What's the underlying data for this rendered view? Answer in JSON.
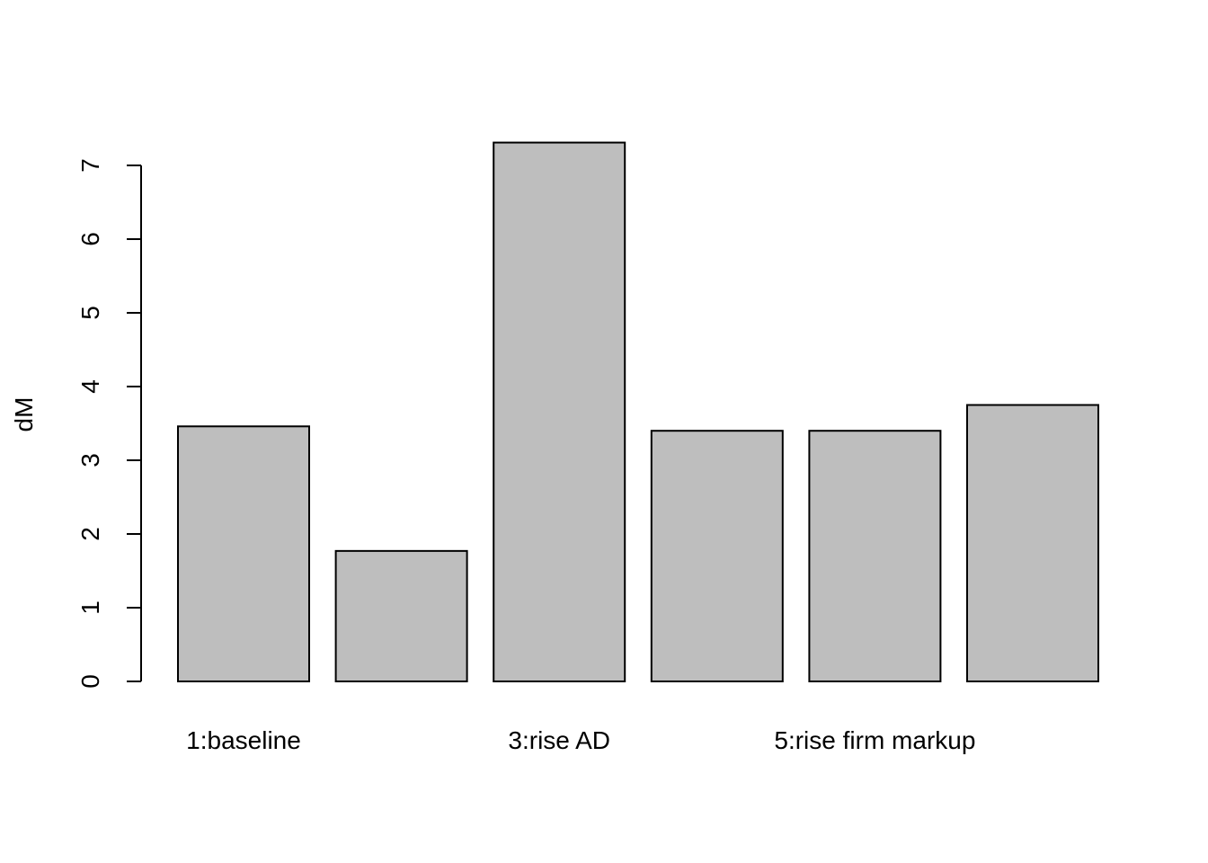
{
  "chart_data": {
    "type": "bar",
    "categories": [
      "1:baseline",
      "",
      "3:rise AD",
      "",
      "5:rise firm markup",
      ""
    ],
    "values": [
      3.46,
      1.77,
      7.31,
      3.4,
      3.4,
      3.75
    ],
    "title": "",
    "xlabel": "",
    "ylabel": "dM",
    "ylim": [
      0,
      7.31
    ],
    "yticks": [
      0,
      1,
      2,
      3,
      4,
      5,
      6,
      7
    ],
    "grid": false,
    "legend": "none",
    "bar_color": "#bebebe",
    "border_color": "#000000"
  }
}
